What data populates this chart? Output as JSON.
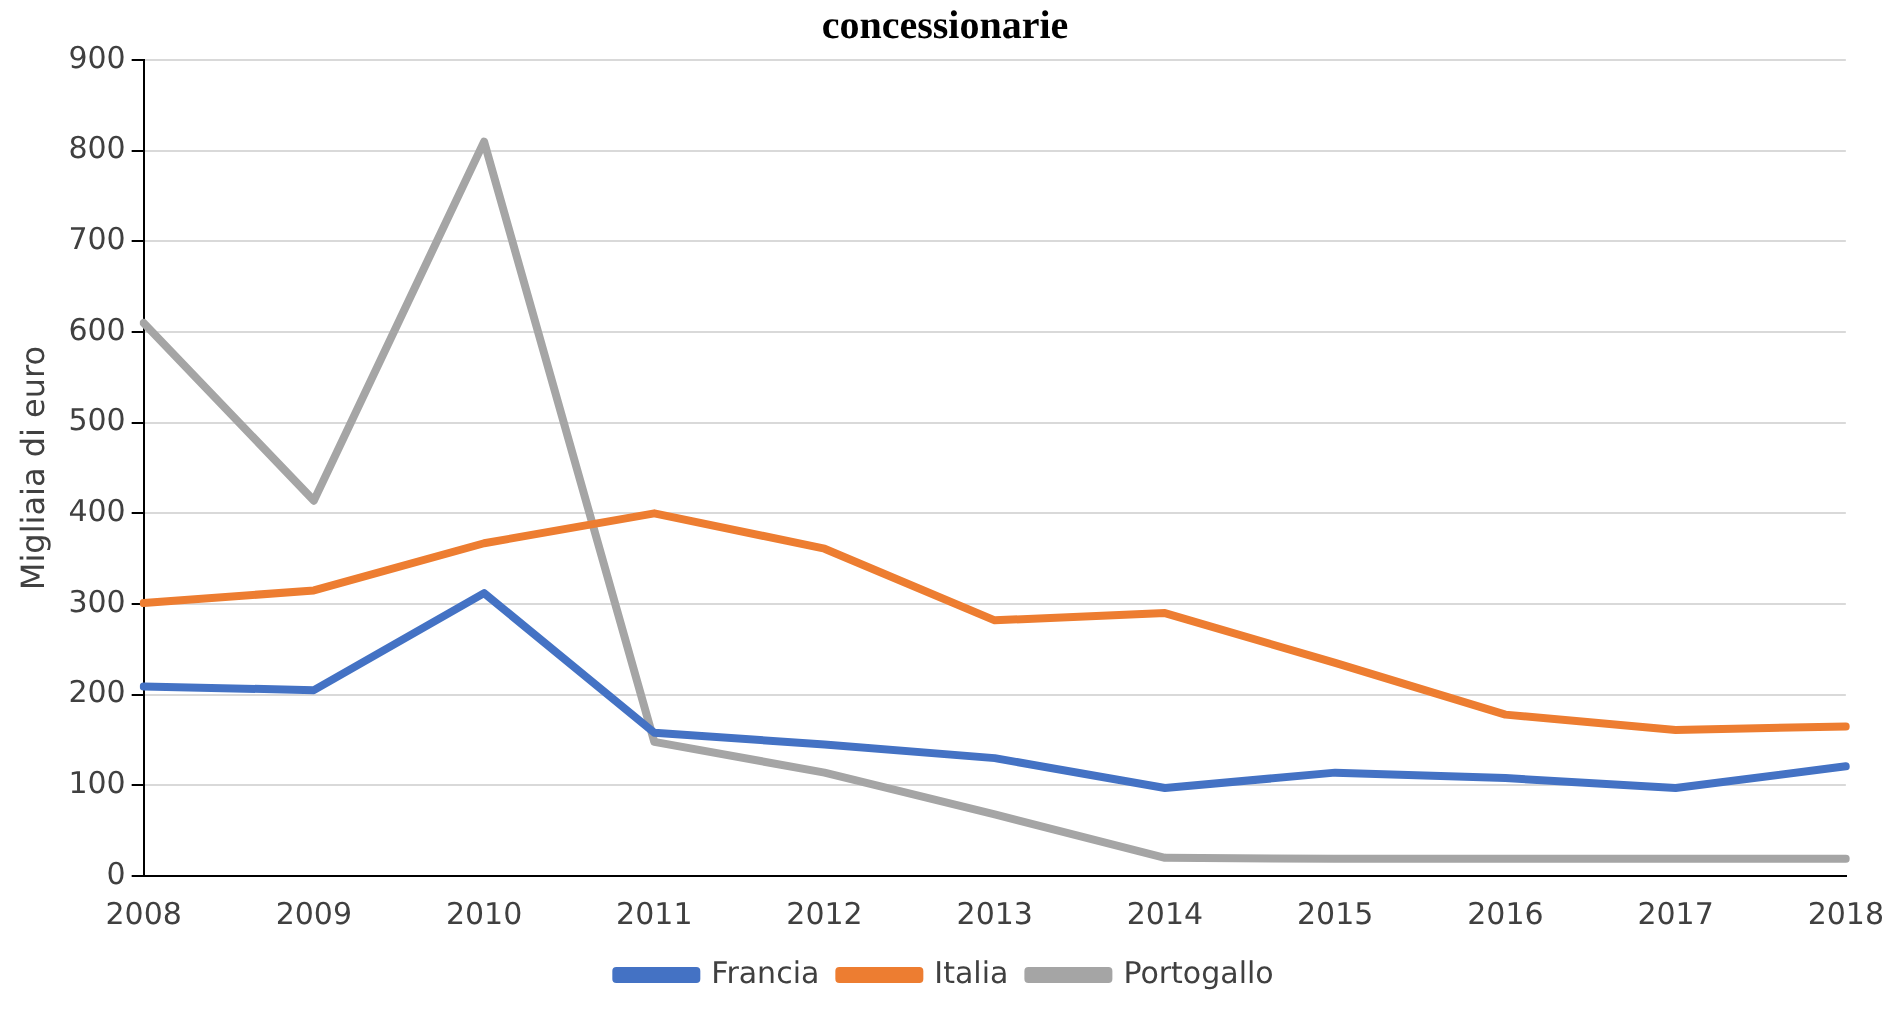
{
  "chart_data": {
    "type": "line",
    "title": "concessionarie",
    "ylabel": "Migliaia di euro",
    "categories": [
      "2008",
      "2009",
      "2010",
      "2011",
      "2012",
      "2013",
      "2014",
      "2015",
      "2016",
      "2017",
      "2018"
    ],
    "series": [
      {
        "name": "Francia",
        "color": "#4472c4",
        "values": [
          209,
          205,
          312,
          158,
          145,
          130,
          97,
          114,
          108,
          97,
          121
        ]
      },
      {
        "name": "Italia",
        "color": "#ed7d31",
        "values": [
          301,
          315,
          367,
          400,
          361,
          282,
          290,
          235,
          178,
          161,
          165
        ]
      },
      {
        "name": "Portogallo",
        "color": "#a5a5a5",
        "values": [
          610,
          414,
          810,
          148,
          114,
          68,
          20,
          19,
          19,
          19,
          19
        ]
      }
    ],
    "ylim": [
      0,
      900
    ],
    "yticks": [
      0,
      100,
      200,
      300,
      400,
      500,
      600,
      700,
      800,
      900
    ],
    "grid": "y",
    "legend": "bottom",
    "marker": "none",
    "line_style": "solid"
  }
}
